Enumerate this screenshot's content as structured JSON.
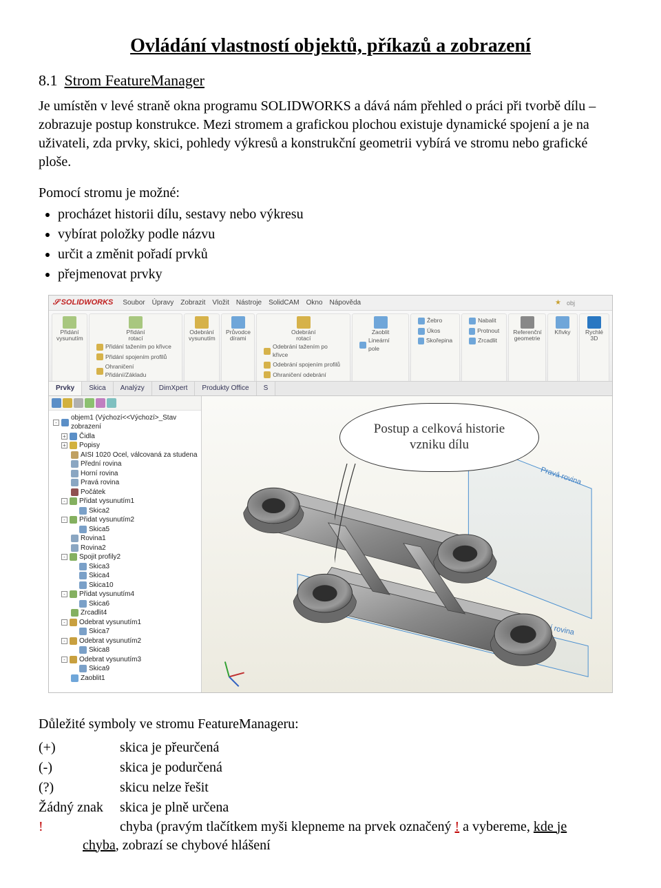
{
  "title": "Ovládání vlastností objektů, příkazů a zobrazení",
  "section_number": "8.1",
  "section_title": "Strom FeatureManager",
  "intro_para": "Je umístěn v levé straně okna programu SOLIDWORKS a dává nám přehled o práci při tvorbě dílu – zobrazuje postup konstrukce. Mezi stromem a grafickou plochou existuje dynamické spojení a je na uživateli, zda prvky, skici, pohledy výkresů a konstrukční geometrii vybírá ve stromu nebo grafické ploše.",
  "pomoci_hdr": "Pomocí stromu je možné:",
  "bullets": [
    "procházet historii dílu, sestavy nebo výkresu",
    "vybírat položky podle názvu",
    "určit a změnit pořadí prvků",
    "přejmenovat prvky"
  ],
  "bubble_text": "Postup a celková historie vzniku dílu",
  "screenshot": {
    "logo": "SOLIDWORKS",
    "menus": [
      "Soubor",
      "Úpravy",
      "Zobrazit",
      "Vložit",
      "Nástroje",
      "SolidCAM",
      "Okno",
      "Nápověda"
    ],
    "ribbon_groups": [
      {
        "icon_color": "#a8c77f",
        "label": "Přidání\nvysunutím",
        "sub": []
      },
      {
        "icon_color": "#a8c77f",
        "label": "Přidání\nrotací",
        "sub": [
          {
            "c": "#d6b24a",
            "t": "Přidání tažením po křivce"
          },
          {
            "c": "#d6b24a",
            "t": "Přidání spojením profilů"
          },
          {
            "c": "#d6b24a",
            "t": "Ohraničení Přidání/Základu"
          }
        ]
      },
      {
        "icon_color": "#d6b24a",
        "label": "Odebrání\nvysunutím",
        "sub": []
      },
      {
        "icon_color": "#6fa6d9",
        "label": "Průvodce\ndírami",
        "sub": []
      },
      {
        "icon_color": "#d6b24a",
        "label": "Odebrání\nrotací",
        "sub": [
          {
            "c": "#d6b24a",
            "t": "Odebrání tažením po křivce"
          },
          {
            "c": "#d6b24a",
            "t": "Odebrání spojením profilů"
          },
          {
            "c": "#d6b24a",
            "t": "Ohraničení odebrání"
          }
        ]
      },
      {
        "icon_color": "#6fa6d9",
        "label": "Zaoblit",
        "sub": [
          {
            "c": "#6fa6d9",
            "t": "Lineární pole"
          }
        ]
      },
      {
        "icon_color": "#6fa6d9",
        "label": "",
        "sub": [
          {
            "c": "#6fa6d9",
            "t": "Žebro"
          },
          {
            "c": "#6fa6d9",
            "t": "Úkos"
          },
          {
            "c": "#6fa6d9",
            "t": "Skořepina"
          }
        ]
      },
      {
        "icon_color": "#6fa6d9",
        "label": "",
        "sub": [
          {
            "c": "#6fa6d9",
            "t": "Nabalit"
          },
          {
            "c": "#6fa6d9",
            "t": "Protnout"
          },
          {
            "c": "#6fa6d9",
            "t": "Zrcadlit"
          }
        ]
      },
      {
        "icon_color": "#888",
        "label": "Referenční\ngeometrie",
        "sub": []
      },
      {
        "icon_color": "#6fa6d9",
        "label": "Křivky",
        "sub": []
      },
      {
        "icon_color": "#2a78c2",
        "label": "Rychlé\n3D",
        "sub": []
      }
    ],
    "tabs": [
      "Prvky",
      "Skica",
      "Analýzy",
      "DimXpert",
      "Produkty Office",
      "S"
    ],
    "tab_active": 0,
    "sidebar_icons": [
      "#5b8fc7",
      "#d2b13e",
      "#b0b0b0",
      "#8cc070",
      "#c07fc0",
      "#7fc0c0"
    ],
    "tree": [
      {
        "lvl": 0,
        "ic": "#5b8fc7",
        "t": "objem1 (Výchozí<<Výchozí>_Stav zobrazení",
        "exp": "-"
      },
      {
        "lvl": 1,
        "ic": "#5b8fc7",
        "t": "Čidla",
        "exp": "+"
      },
      {
        "lvl": 1,
        "ic": "#d2b13e",
        "t": "Popisy",
        "exp": "+"
      },
      {
        "lvl": 1,
        "ic": "#c0a060",
        "t": "AISI 1020 Ocel, válcovaná za studena"
      },
      {
        "lvl": 1,
        "ic": "#8aa6c2",
        "t": "Přední rovina"
      },
      {
        "lvl": 1,
        "ic": "#8aa6c2",
        "t": "Horní rovina"
      },
      {
        "lvl": 1,
        "ic": "#8aa6c2",
        "t": "Pravá rovina"
      },
      {
        "lvl": 1,
        "ic": "#905050",
        "t": "Počátek"
      },
      {
        "lvl": 1,
        "ic": "#84b060",
        "t": "Přidat vysunutím1",
        "exp": "-"
      },
      {
        "lvl": 2,
        "ic": "#7aa0c8",
        "t": "Skica2"
      },
      {
        "lvl": 1,
        "ic": "#84b060",
        "t": "Přidat vysunutím2",
        "exp": "-"
      },
      {
        "lvl": 2,
        "ic": "#7aa0c8",
        "t": "Skica5"
      },
      {
        "lvl": 1,
        "ic": "#8aa6c2",
        "t": "Rovina1"
      },
      {
        "lvl": 1,
        "ic": "#8aa6c2",
        "t": "Rovina2"
      },
      {
        "lvl": 1,
        "ic": "#84b060",
        "t": "Spojit profily2",
        "exp": "-"
      },
      {
        "lvl": 2,
        "ic": "#7aa0c8",
        "t": "Skica3"
      },
      {
        "lvl": 2,
        "ic": "#7aa0c8",
        "t": "Skica4"
      },
      {
        "lvl": 2,
        "ic": "#7aa0c8",
        "t": "Skica10"
      },
      {
        "lvl": 1,
        "ic": "#84b060",
        "t": "Přidat vysunutím4",
        "exp": "-"
      },
      {
        "lvl": 2,
        "ic": "#7aa0c8",
        "t": "Skica6"
      },
      {
        "lvl": 1,
        "ic": "#84b060",
        "t": "Zrcadlit4"
      },
      {
        "lvl": 1,
        "ic": "#c8a040",
        "t": "Odebrat vysunutím1",
        "exp": "-"
      },
      {
        "lvl": 2,
        "ic": "#7aa0c8",
        "t": "Skica7"
      },
      {
        "lvl": 1,
        "ic": "#c8a040",
        "t": "Odebrat vysunutím2",
        "exp": "-"
      },
      {
        "lvl": 2,
        "ic": "#7aa0c8",
        "t": "Skica8"
      },
      {
        "lvl": 1,
        "ic": "#c8a040",
        "t": "Odebrat vysunutím3",
        "exp": "-"
      },
      {
        "lvl": 2,
        "ic": "#7aa0c8",
        "t": "Skica9"
      },
      {
        "lvl": 1,
        "ic": "#6fa6d9",
        "t": "Zaoblit1"
      }
    ]
  },
  "part_colors": {
    "metal": "#8d8d8d",
    "metal_dark": "#5a5a5a",
    "metal_light": "#b8b8b8",
    "hole": "#3a3a3a",
    "plane": "#2a7bc4"
  },
  "symbols_hdr": "Důležité symboly ve stromu FeatureManageru:",
  "symbols": [
    {
      "k": "(+)",
      "v": "skica je přeurčená"
    },
    {
      "k": "(-)",
      "v": "skica je podurčená"
    },
    {
      "k": "(?)",
      "v": "skicu nelze řešit"
    },
    {
      "k": "Žádný znak",
      "v": "skica je plně určena"
    }
  ],
  "err": {
    "mark": "!",
    "line1_a": "chyba (pravým tlačítkem myši klepneme na prvek označený ",
    "line1_b": "!",
    "line1_c": " a vybereme, ",
    "line1_d": "kde je",
    "line2_a": "chyba",
    "line2_b": ", zobrazí se chybové hlášení"
  }
}
